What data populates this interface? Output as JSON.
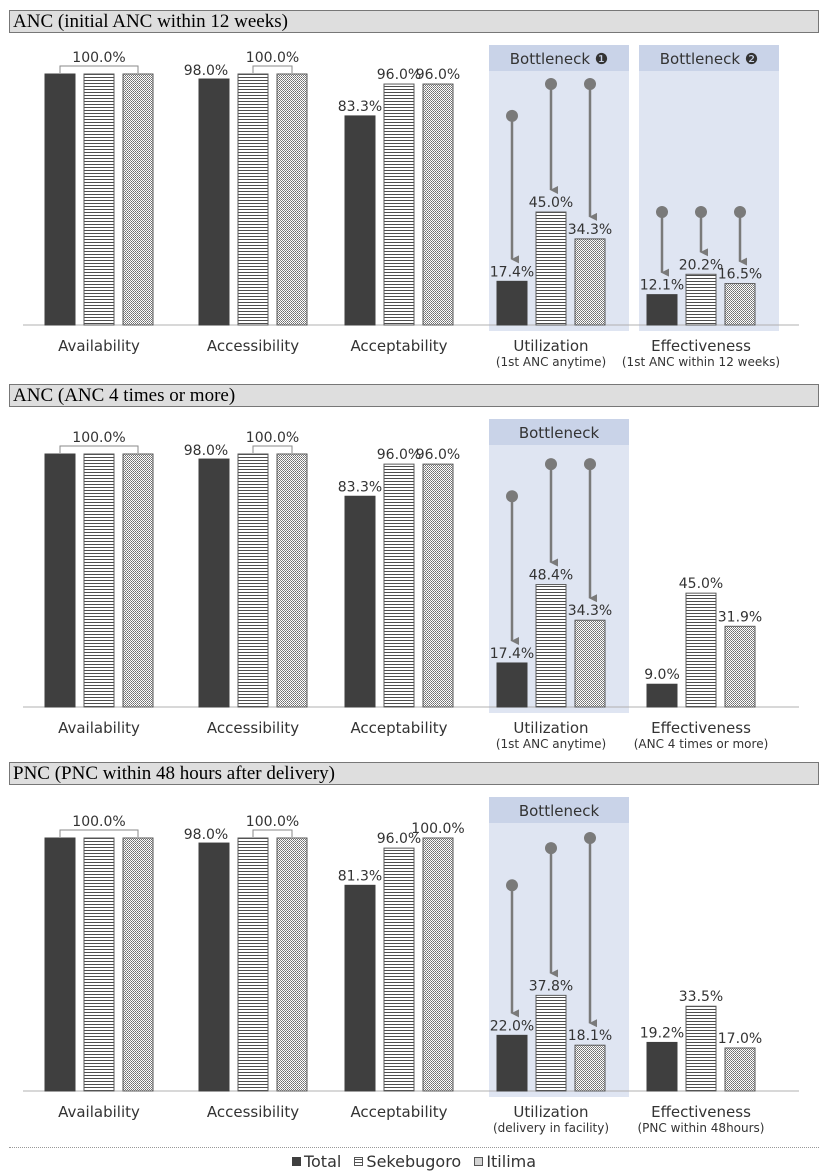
{
  "colors": {
    "total": "#3f3f3f",
    "bottleneck_bg": "#dfe5f2",
    "arrow": "#7a7a7a"
  },
  "legend": [
    {
      "name": "Total",
      "swatch": "filled-square"
    },
    {
      "name": "Sekebugoro",
      "swatch": "horizontal-striped-square"
    },
    {
      "name": "Itilima",
      "swatch": "dotted-square"
    }
  ],
  "chart_data": [
    {
      "type": "bar",
      "title": "ANC (initial ANC within 12 weeks)",
      "ylim": [
        0,
        100
      ],
      "grid": false,
      "legend": "bottom",
      "categories": [
        {
          "label": "Availability",
          "sublabel": ""
        },
        {
          "label": "Accessibility",
          "sublabel": ""
        },
        {
          "label": "Acceptability",
          "sublabel": ""
        },
        {
          "label": "Utilization",
          "sublabel": "(1st ANC anytime)"
        },
        {
          "label": "Effectiveness",
          "sublabel": "(1st ANC within 12 weeks)"
        }
      ],
      "series": [
        {
          "name": "Total",
          "values": [
            100.0,
            98.0,
            83.3,
            17.4,
            12.1
          ]
        },
        {
          "name": "Sekebugoro",
          "values": [
            100.0,
            100.0,
            96.0,
            45.0,
            20.2
          ]
        },
        {
          "name": "Itilima",
          "values": [
            100.0,
            100.0,
            96.0,
            34.3,
            16.5
          ]
        }
      ],
      "data_labels": [
        {
          "category": 0,
          "group_label": "100.0%"
        },
        {
          "category": 1,
          "single": "98.0%",
          "group_label": "100.0%"
        },
        {
          "category": 2,
          "labels": [
            "83.3%",
            "96.0%",
            "96.0%"
          ]
        },
        {
          "category": 3,
          "labels": [
            "17.4%",
            "45.0%",
            "34.3%"
          ]
        },
        {
          "category": 4,
          "labels": [
            "12.1%",
            "20.2%",
            "16.5%"
          ]
        }
      ],
      "bottlenecks": [
        {
          "label": "Bottleneck ❶",
          "category": 3,
          "arrows_from": [
            83.3,
            96.0,
            96.0
          ]
        },
        {
          "label": "Bottleneck ❷",
          "category": 4,
          "arrows_from": [
            45.0,
            45.0,
            45.0
          ]
        }
      ]
    },
    {
      "type": "bar",
      "title": "ANC (ANC 4 times or more)",
      "ylim": [
        0,
        100
      ],
      "grid": false,
      "legend": "bottom",
      "categories": [
        {
          "label": "Availability",
          "sublabel": ""
        },
        {
          "label": "Accessibility",
          "sublabel": ""
        },
        {
          "label": "Acceptability",
          "sublabel": ""
        },
        {
          "label": "Utilization",
          "sublabel": "(1st ANC anytime)"
        },
        {
          "label": "Effectiveness",
          "sublabel": "(ANC 4 times or more)"
        }
      ],
      "series": [
        {
          "name": "Total",
          "values": [
            100.0,
            98.0,
            83.3,
            17.4,
            9.0
          ]
        },
        {
          "name": "Sekebugoro",
          "values": [
            100.0,
            100.0,
            96.0,
            48.4,
            45.0
          ]
        },
        {
          "name": "Itilima",
          "values": [
            100.0,
            100.0,
            96.0,
            34.3,
            31.9
          ]
        }
      ],
      "data_labels": [
        {
          "category": 0,
          "group_label": "100.0%"
        },
        {
          "category": 1,
          "single": "98.0%",
          "group_label": "100.0%"
        },
        {
          "category": 2,
          "labels": [
            "83.3%",
            "96.0%",
            "96.0%"
          ]
        },
        {
          "category": 3,
          "labels": [
            "17.4%",
            "48.4%",
            "34.3%"
          ]
        },
        {
          "category": 4,
          "labels": [
            "9.0%",
            "45.0%",
            "31.9%"
          ]
        }
      ],
      "bottlenecks": [
        {
          "label": "Bottleneck",
          "category": 3,
          "arrows_from": [
            83.3,
            96.0,
            96.0
          ]
        }
      ]
    },
    {
      "type": "bar",
      "title": "PNC (PNC within 48 hours after delivery)",
      "ylim": [
        0,
        100
      ],
      "grid": false,
      "legend": "bottom",
      "categories": [
        {
          "label": "Availability",
          "sublabel": ""
        },
        {
          "label": "Accessibility",
          "sublabel": ""
        },
        {
          "label": "Acceptability",
          "sublabel": ""
        },
        {
          "label": "Utilization",
          "sublabel": "(delivery in facility)"
        },
        {
          "label": "Effectiveness",
          "sublabel": "(PNC within 48hours)"
        }
      ],
      "series": [
        {
          "name": "Total",
          "values": [
            100.0,
            98.0,
            81.3,
            22.0,
            19.2
          ]
        },
        {
          "name": "Sekebugoro",
          "values": [
            100.0,
            100.0,
            96.0,
            37.8,
            33.5
          ]
        },
        {
          "name": "Itilima",
          "values": [
            100.0,
            100.0,
            100.0,
            18.1,
            17.0
          ]
        }
      ],
      "data_labels": [
        {
          "category": 0,
          "group_label": "100.0%"
        },
        {
          "category": 1,
          "single": "98.0%",
          "group_label": "100.0%"
        },
        {
          "category": 2,
          "labels": [
            "81.3%",
            "96.0%",
            "100.0%"
          ]
        },
        {
          "category": 3,
          "labels": [
            "22.0%",
            "37.8%",
            "18.1%"
          ]
        },
        {
          "category": 4,
          "labels": [
            "19.2%",
            "33.5%",
            "17.0%"
          ]
        }
      ],
      "bottlenecks": [
        {
          "label": "Bottleneck",
          "category": 3,
          "arrows_from": [
            81.3,
            96.0,
            100.0
          ]
        }
      ]
    }
  ]
}
